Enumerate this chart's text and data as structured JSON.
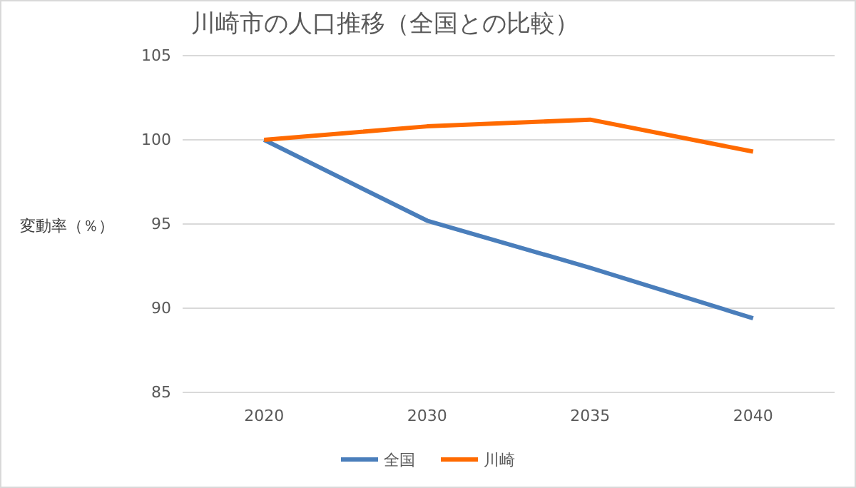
{
  "chart_data": {
    "type": "line",
    "title": "川崎市の人口推移（全国との比較）",
    "ylabel": "変動率（％）",
    "categories": [
      "2020",
      "2030",
      "2035",
      "2040"
    ],
    "series": [
      {
        "name": "全国",
        "color": "#4a7ebb",
        "values": [
          100,
          95.2,
          92.4,
          89.4
        ]
      },
      {
        "name": "川崎",
        "color": "#ff6a00",
        "values": [
          100,
          100.8,
          101.2,
          99.3
        ]
      }
    ],
    "ylim": [
      85,
      105
    ],
    "yticks": [
      85,
      90,
      95,
      100,
      105
    ],
    "grid": "y",
    "legend": "bottom"
  }
}
